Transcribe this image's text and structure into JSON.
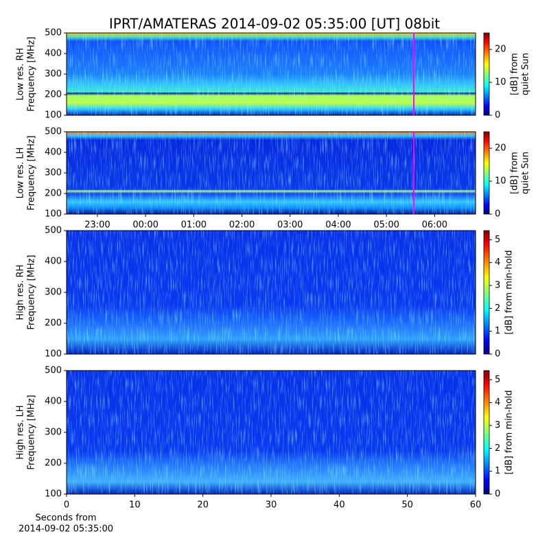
{
  "chart_data": [
    {
      "type": "spectrogram",
      "title": "IPRT/AMATERAS 2014-09-02 05:35:00 [UT]   08bit",
      "ylabel": [
        "Low res. RH",
        "Frequency [MHz]"
      ],
      "ylim": [
        100,
        500
      ],
      "yticks": [
        100,
        200,
        300,
        400,
        500
      ],
      "colorbar": {
        "label": [
          "[dB] from",
          "quiet Sun"
        ],
        "lim": [
          0,
          25
        ],
        "ticks": [
          0,
          10,
          20
        ]
      }
    },
    {
      "type": "spectrogram",
      "ylabel": [
        "Low res. LH",
        "Frequency [MHz]"
      ],
      "ylim": [
        100,
        500
      ],
      "yticks": [
        100,
        200,
        300,
        400,
        500
      ],
      "xlim": [
        22.36,
        30.85
      ],
      "xticks": [
        {
          "value": 23,
          "label": "23:00"
        },
        {
          "value": 24,
          "label": "00:00"
        },
        {
          "value": 25,
          "label": "01:00"
        },
        {
          "value": 26,
          "label": "02:00"
        },
        {
          "value": 27,
          "label": "03:00"
        },
        {
          "value": 28,
          "label": "04:00"
        },
        {
          "value": 29,
          "label": "05:00"
        },
        {
          "value": 30,
          "label": "06:00"
        }
      ],
      "colorbar": {
        "label": [
          "[dB] from",
          "quiet Sun"
        ],
        "lim": [
          0,
          25
        ],
        "ticks": [
          0,
          10,
          20
        ]
      }
    },
    {
      "type": "spectrogram",
      "ylabel": [
        "High res. RH",
        "Frequency [MHz]"
      ],
      "ylim": [
        100,
        500
      ],
      "yticks": [
        100,
        200,
        300,
        400,
        500
      ],
      "colorbar": {
        "label": [
          "[dB] from min-hold"
        ],
        "lim": [
          0,
          5.4
        ],
        "ticks": [
          0,
          1,
          2,
          3,
          4,
          5
        ]
      }
    },
    {
      "type": "spectrogram",
      "ylabel": [
        "High res. LH",
        "Frequency [MHz]"
      ],
      "ylim": [
        100,
        500
      ],
      "yticks": [
        100,
        200,
        300,
        400,
        500
      ],
      "xlim": [
        0,
        60
      ],
      "xticks": [
        0,
        10,
        20,
        30,
        40,
        50,
        60
      ],
      "xlabel": [
        "Seconds from",
        "2014-09-02 05:35:00"
      ],
      "colorbar": {
        "label": [
          "[dB] from min-hold"
        ],
        "lim": [
          0,
          5.4
        ],
        "ticks": [
          0,
          1,
          2,
          3,
          4,
          5
        ]
      }
    }
  ]
}
